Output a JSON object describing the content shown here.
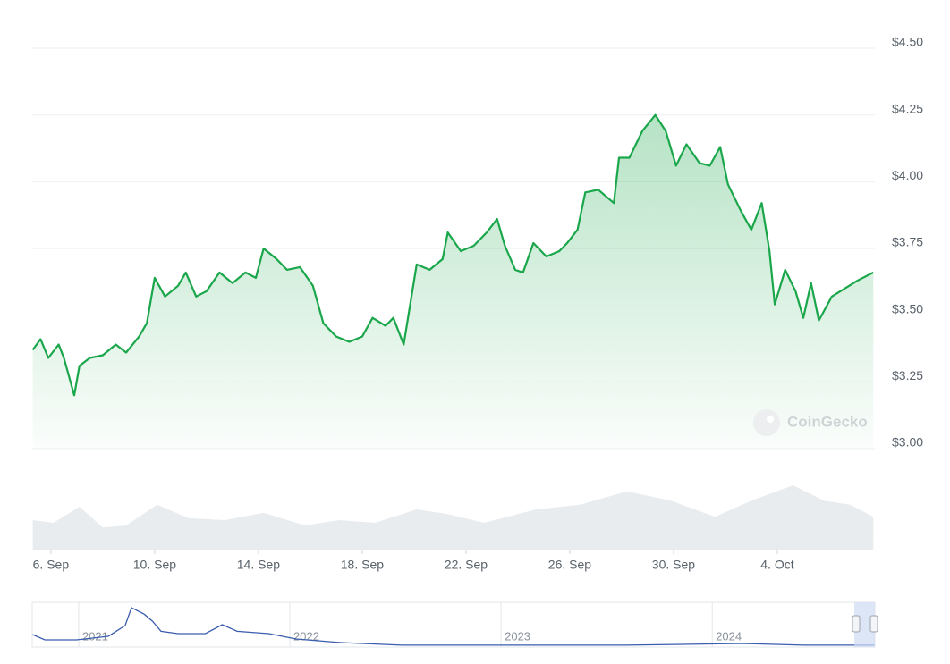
{
  "chart_data": [
    {
      "type": "line",
      "x": [
        -0.7,
        -0.4,
        -0.1,
        0.3,
        0.5,
        0.9,
        1.1,
        1.5,
        2.0,
        2.5,
        2.9,
        3.4,
        3.7,
        4.0,
        4.4,
        4.9,
        5.2,
        5.6,
        6.0,
        6.5,
        7.0,
        7.5,
        7.9,
        8.2,
        8.7,
        9.1,
        9.6,
        10.1,
        10.5,
        11.0,
        11.5,
        12.0,
        12.4,
        12.9,
        13.2,
        13.6,
        13.8,
        14.1,
        14.6,
        15.1,
        15.3,
        15.8,
        16.3,
        16.8,
        17.2,
        17.5,
        17.9,
        18.2,
        18.6,
        19.1,
        19.6,
        19.9,
        20.3,
        20.6,
        21.1,
        21.7,
        21.9,
        22.3,
        22.8,
        23.3,
        23.7,
        24.1,
        24.5,
        25.0,
        25.4,
        25.8,
        26.1,
        26.6,
        27.0,
        27.4,
        27.7,
        27.9,
        28.3,
        28.7,
        29.0,
        29.3,
        29.6,
        30.1,
        30.6,
        31.1,
        31.7
      ],
      "values": [
        3.37,
        3.41,
        3.34,
        3.39,
        3.34,
        3.2,
        3.31,
        3.34,
        3.35,
        3.39,
        3.36,
        3.42,
        3.47,
        3.64,
        3.57,
        3.61,
        3.66,
        3.57,
        3.59,
        3.66,
        3.62,
        3.66,
        3.64,
        3.75,
        3.71,
        3.67,
        3.68,
        3.61,
        3.47,
        3.42,
        3.4,
        3.42,
        3.49,
        3.46,
        3.49,
        3.39,
        3.51,
        3.69,
        3.67,
        3.71,
        3.81,
        3.74,
        3.76,
        3.81,
        3.86,
        3.76,
        3.67,
        3.66,
        3.77,
        3.72,
        3.74,
        3.77,
        3.82,
        3.96,
        3.97,
        3.92,
        4.09,
        4.09,
        4.19,
        4.25,
        4.19,
        4.06,
        4.14,
        4.07,
        4.06,
        4.13,
        3.99,
        3.89,
        3.82,
        3.92,
        3.74,
        3.54,
        3.67,
        3.59,
        3.49,
        3.62,
        3.48,
        3.57,
        3.6,
        3.63,
        3.66
      ],
      "color": "#1aa64a",
      "xlim": [
        -0.72,
        31.76
      ],
      "ylim": [
        3.0,
        4.5
      ],
      "xticks": [
        {
          "value": 0,
          "label": "6. Sep"
        },
        {
          "value": 4,
          "label": "10. Sep"
        },
        {
          "value": 8,
          "label": "14. Sep"
        },
        {
          "value": 12,
          "label": "18. Sep"
        },
        {
          "value": 16,
          "label": "22. Sep"
        },
        {
          "value": 20,
          "label": "26. Sep"
        },
        {
          "value": 24,
          "label": "30. Sep"
        },
        {
          "value": 28,
          "label": "4. Oct"
        }
      ],
      "yticks": [
        {
          "value": 3.0,
          "label": "$3.00"
        },
        {
          "value": 3.25,
          "label": "$3.25"
        },
        {
          "value": 3.5,
          "label": "$3.50"
        },
        {
          "value": 3.75,
          "label": "$3.75"
        },
        {
          "value": 4.0,
          "label": "$4.00"
        },
        {
          "value": 4.25,
          "label": "$4.25"
        },
        {
          "value": 4.5,
          "label": "$4.50"
        }
      ],
      "grid": true,
      "watermark": "CoinGecko",
      "volume": {
        "x": [
          -0.7,
          0.1,
          1.1,
          2.0,
          2.9,
          4.1,
          5.3,
          6.7,
          8.2,
          9.8,
          11.1,
          12.5,
          14.1,
          15.3,
          16.7,
          18.7,
          20.4,
          22.2,
          23.9,
          25.6,
          27.0,
          28.6,
          29.8,
          30.8,
          31.7
        ],
        "values": [
          44,
          40,
          64,
          33,
          36,
          67,
          47,
          44,
          55,
          36,
          44,
          40,
          60,
          53,
          40,
          60,
          67,
          87,
          73,
          49,
          73,
          96,
          73,
          67,
          49
        ],
        "ylim": [
          0,
          100
        ],
        "color": "#e9ecef"
      }
    },
    {
      "type": "line",
      "x": [
        2020.78,
        2020.84,
        2020.99,
        2021.14,
        2021.22,
        2021.25,
        2021.31,
        2021.35,
        2021.39,
        2021.47,
        2021.6,
        2021.68,
        2021.75,
        2021.9,
        2022.03,
        2022.24,
        2022.53,
        2023.0,
        2023.59,
        2024.14,
        2024.44,
        2024.77
      ],
      "values": [
        8.8,
        5,
        5,
        7.5,
        15,
        27.5,
        23,
        18,
        11,
        9.4,
        9.4,
        15.6,
        11,
        9.4,
        5.6,
        3.1,
        1.3,
        1.3,
        1.3,
        2.5,
        1.3,
        1.3
      ],
      "color": "#3a5dae",
      "xlim": [
        2020.78,
        2024.77
      ],
      "ylim": [
        0,
        30
      ],
      "xticks": [
        2021,
        2022,
        2023,
        2024
      ]
    }
  ]
}
